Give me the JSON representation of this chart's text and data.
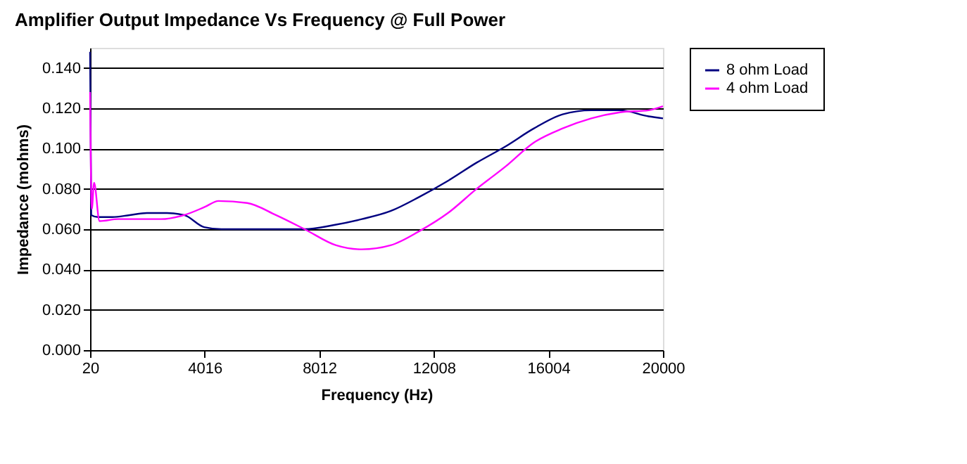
{
  "chart_data": {
    "type": "line",
    "title": "Amplifier Output Impedance Vs Frequency @ Full Power",
    "xlabel": "Frequency (Hz)",
    "ylabel": "Impedance (mohms)",
    "xlim": [
      20,
      20000
    ],
    "xticks": [
      20,
      4016,
      8012,
      12008,
      16004,
      20000
    ],
    "ylim": [
      0,
      0.15
    ],
    "yticks": [
      {
        "value": 0,
        "label": "0.000"
      },
      {
        "value": 0.02,
        "label": "0.020"
      },
      {
        "value": 0.04,
        "label": "0.040"
      },
      {
        "value": 0.06,
        "label": "0.060"
      },
      {
        "value": 0.08,
        "label": "0.080"
      },
      {
        "value": 0.1,
        "label": "0.100"
      },
      {
        "value": 0.12,
        "label": "0.120"
      },
      {
        "value": 0.14,
        "label": "0.140"
      }
    ],
    "grid": "y",
    "legend": "right",
    "marker": "none",
    "line_style": "solid",
    "series": [
      {
        "name": "8 ohm Load",
        "color": "#000080",
        "x": [
          20,
          60,
          300,
          800,
          1400,
          2000,
          2700,
          3300,
          4000,
          4600,
          6000,
          7500,
          8500,
          9500,
          10500,
          11500,
          12500,
          13500,
          14500,
          15500,
          16500,
          17500,
          18500,
          19500,
          20000
        ],
        "values": [
          0.148,
          0.067,
          0.066,
          0.066,
          0.067,
          0.068,
          0.068,
          0.067,
          0.061,
          0.06,
          0.06,
          0.06,
          0.062,
          0.065,
          0.069,
          0.076,
          0.084,
          0.093,
          0.101,
          0.11,
          0.117,
          0.119,
          0.119,
          0.116,
          0.115
        ]
      },
      {
        "name": "4 ohm Load",
        "color": "#ff00ff",
        "x": [
          20,
          80,
          160,
          350,
          1000,
          2500,
          3300,
          4016,
          4500,
          5500,
          6500,
          7500,
          8600,
          9500,
          10500,
          11500,
          12500,
          13500,
          14500,
          15500,
          16500,
          17500,
          18500,
          19500,
          20000
        ],
        "values": [
          0.128,
          0.07,
          0.083,
          0.064,
          0.065,
          0.065,
          0.067,
          0.071,
          0.074,
          0.073,
          0.067,
          0.06,
          0.052,
          0.05,
          0.052,
          0.059,
          0.068,
          0.08,
          0.091,
          0.103,
          0.11,
          0.115,
          0.118,
          0.119,
          0.121
        ]
      }
    ]
  }
}
